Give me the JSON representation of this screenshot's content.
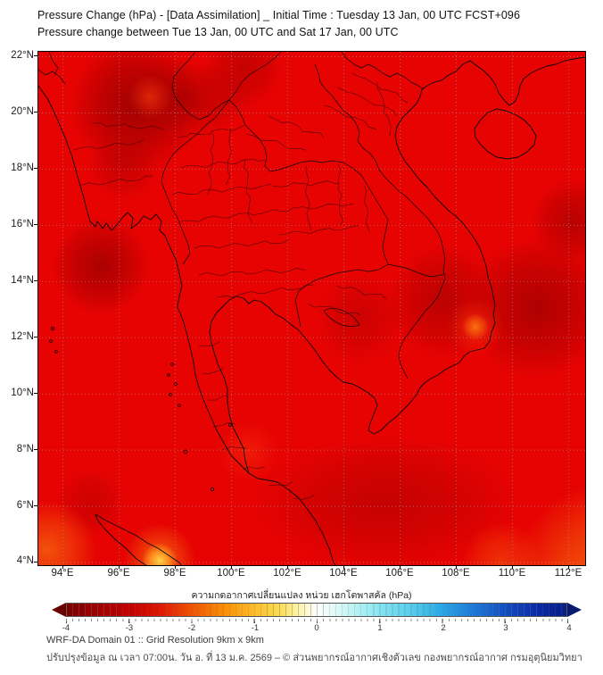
{
  "header": {
    "title_line1": "Pressure Change (hPa) - [Data Assimilation] _ Initial Time : Tuesday 13 Jan, 00 UTC FCST+096",
    "title_line2": "Pressure change between Tue 13 Jan, 00 UTC and Sat 17 Jan, 00 UTC"
  },
  "map": {
    "lat_labels": [
      "22°N",
      "20°N",
      "18°N",
      "16°N",
      "14°N",
      "12°N",
      "10°N",
      "8°N",
      "6°N",
      "4°N"
    ],
    "lon_labels": [
      "94°E",
      "96°E",
      "98°E",
      "100°E",
      "102°E",
      "104°E",
      "106°E",
      "108°E",
      "110°E",
      "112°E"
    ]
  },
  "colorbar": {
    "title": "ความกดอากาศเปลี่ยนแปลง หน่วย เฮกโตพาสคัล (hPa)",
    "tick_labels": [
      "-4",
      "-3",
      "-2",
      "-1",
      "0",
      "1",
      "2",
      "3",
      "4"
    ],
    "min": -4,
    "max": 4,
    "extend": "both",
    "gradient": [
      [
        "0%",
        "#7a0000"
      ],
      [
        "5%",
        "#990000"
      ],
      [
        "12.5%",
        "#c40000"
      ],
      [
        "19%",
        "#e01800"
      ],
      [
        "25%",
        "#f55200"
      ],
      [
        "31%",
        "#fb8b00"
      ],
      [
        "37.5%",
        "#fdbc2a"
      ],
      [
        "42%",
        "#fcd94a"
      ],
      [
        "46%",
        "#fef2a0"
      ],
      [
        "50%",
        "#ffffff"
      ],
      [
        "54%",
        "#defaf6"
      ],
      [
        "58%",
        "#b5f2f4"
      ],
      [
        "62.5%",
        "#87e6f2"
      ],
      [
        "69%",
        "#54ceee"
      ],
      [
        "75%",
        "#2aa8e6"
      ],
      [
        "81%",
        "#1d7bda"
      ],
      [
        "87.5%",
        "#1250c4"
      ],
      [
        "94%",
        "#0a2ba8"
      ],
      [
        "100%",
        "#081f85"
      ]
    ],
    "left_arrow_color": "#6b0000",
    "right_arrow_color": "#071a70"
  },
  "colors": {
    "map_base": "#e60302",
    "dark_anomaly": "#8f0000",
    "grid": "#9a9a9a",
    "coastline": "#0a0a0a",
    "axis_text": "#1c1c1c"
  },
  "footer": {
    "line1": "WRF-DA Domain 01 :: Grid Resolution 9km x 9km",
    "line2": "ปรับปรุงข้อมูล ณ เวลา 07:00น. วัน อ. ที่ 13 ม.ค. 2569 – © ส่วนพยากรณ์อากาศเชิงตัวเลข กองพยากรณ์อากาศ กรมอุตุนิยมวิทยา"
  },
  "chart_data": {
    "type": "heatmap",
    "title": "Pressure Change (hPa) - [Data Assimilation] _ Initial Time : Tuesday 13 Jan, 00 UTC FCST+096",
    "subtitle": "Pressure change between Tue 13 Jan, 00 UTC and Sat 17 Jan, 00 UTC",
    "x_tick_labels": [
      "94°E",
      "96°E",
      "98°E",
      "100°E",
      "102°E",
      "104°E",
      "106°E",
      "108°E",
      "110°E",
      "112°E"
    ],
    "y_tick_labels": [
      "22°N",
      "20°N",
      "18°N",
      "16°N",
      "14°N",
      "12°N",
      "10°N",
      "8°N",
      "6°N",
      "4°N"
    ],
    "x_range_deg_east": [
      93.1,
      112.6
    ],
    "y_range_deg_north": [
      3.9,
      22.2
    ],
    "colorbar_label": "ความกดอากาศเปลี่ยนแปลง หน่วย เฮกโตพาสคัล (hPa)",
    "colorbar_ticks": [
      -4,
      -3,
      -2,
      -1,
      0,
      1,
      2,
      3,
      4
    ],
    "units": "hPa",
    "field_summary": "Whole domain negative pressure change about -2.5 to -3.5 hPa (red); darkest minima near 96.5E/20.3N, 95.3E/14.5N, 110.9E/13.1N and 112.2E/16.1N; weaker change (orange-yellow, about -1 to -1.5 hPa) near 97.4E/4.0N, 93.4E/4.4N, 108.5E/12.4N and the southeast corner"
  }
}
